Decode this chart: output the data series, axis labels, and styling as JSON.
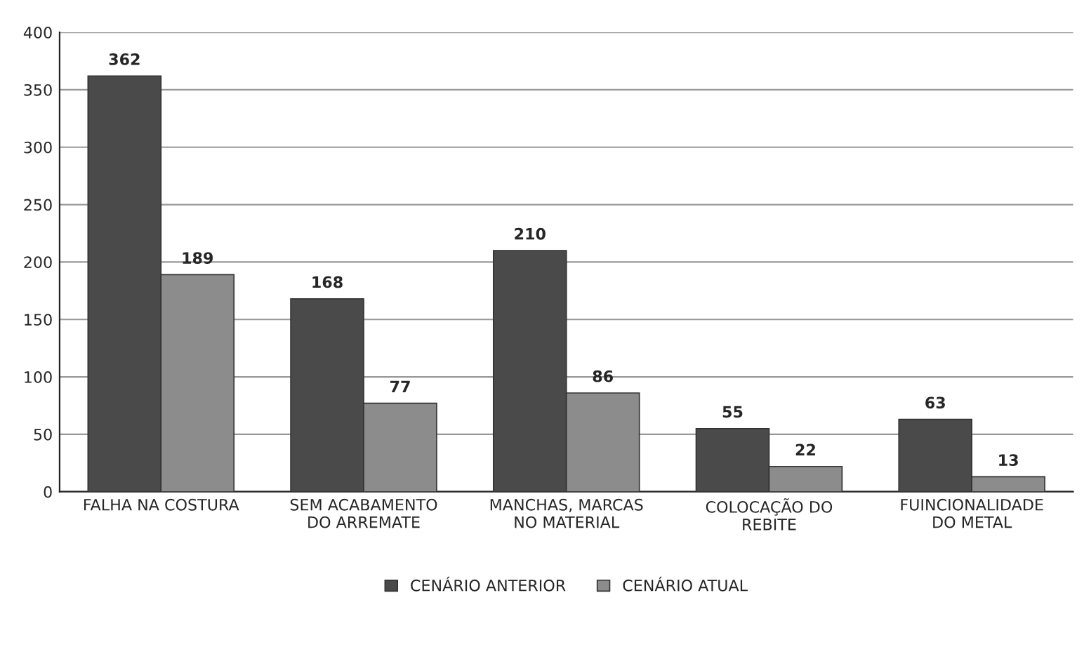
{
  "chart_data": {
    "type": "bar",
    "categories": [
      "FALHA NA COSTURA",
      "SEM ACABAMENTO\nDO ARREMATE",
      "MANCHAS, MARCAS\nNO MATERIAL",
      "COLOCAÇÃO DO\nREBITE",
      "FUINCIONALIDADE\nDO METAL"
    ],
    "series": [
      {
        "name": "CENÁRIO ANTERIOR",
        "color": "#4a4a4a",
        "values": [
          362,
          168,
          210,
          55,
          63
        ]
      },
      {
        "name": "CENÁRIO ATUAL",
        "color": "#8c8c8c",
        "values": [
          189,
          77,
          86,
          22,
          13
        ]
      }
    ],
    "ylim": [
      0,
      400
    ],
    "yticks": [
      0,
      50,
      100,
      150,
      200,
      250,
      300,
      350,
      400
    ],
    "grid": "y",
    "legend": "bottom",
    "data_labels": true
  }
}
